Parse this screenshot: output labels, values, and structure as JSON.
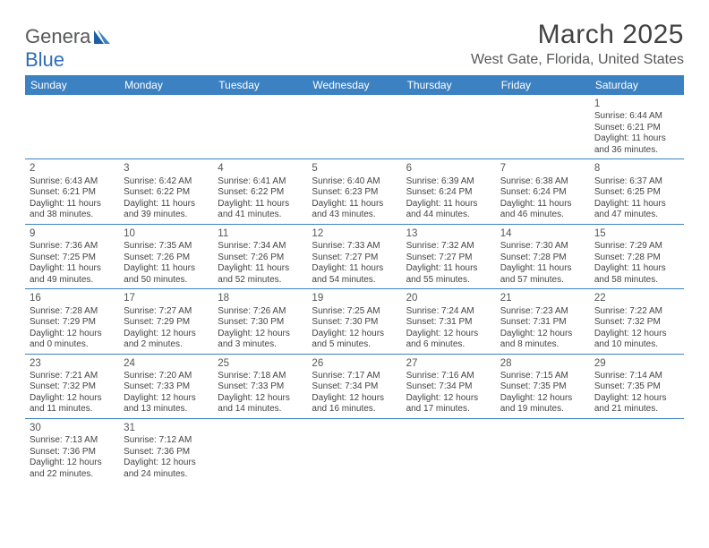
{
  "colors": {
    "header_bg": "#3c81c2",
    "header_text": "#ffffff",
    "body_text": "#444444",
    "border": "#3c81c2",
    "title_color": "#414244",
    "subtitle_color": "#57585a",
    "logo_gray": "#57585a",
    "logo_blue": "#2f6db3",
    "background": "#ffffff"
  },
  "fonts": {
    "title_size": 30,
    "location_size": 16,
    "weekday_size": 12,
    "cell_size": 10,
    "daynum_size": 11.5
  },
  "logo": {
    "text_gray": "Genera",
    "text_blue": "Blue"
  },
  "title": "March 2025",
  "location": "West Gate, Florida, United States",
  "weekdays": [
    "Sunday",
    "Monday",
    "Tuesday",
    "Wednesday",
    "Thursday",
    "Friday",
    "Saturday"
  ],
  "leading_blanks": 6,
  "days": [
    {
      "n": "1",
      "sr": "Sunrise: 6:44 AM",
      "ss": "Sunset: 6:21 PM",
      "d1": "Daylight: 11 hours",
      "d2": "and 36 minutes."
    },
    {
      "n": "2",
      "sr": "Sunrise: 6:43 AM",
      "ss": "Sunset: 6:21 PM",
      "d1": "Daylight: 11 hours",
      "d2": "and 38 minutes."
    },
    {
      "n": "3",
      "sr": "Sunrise: 6:42 AM",
      "ss": "Sunset: 6:22 PM",
      "d1": "Daylight: 11 hours",
      "d2": "and 39 minutes."
    },
    {
      "n": "4",
      "sr": "Sunrise: 6:41 AM",
      "ss": "Sunset: 6:22 PM",
      "d1": "Daylight: 11 hours",
      "d2": "and 41 minutes."
    },
    {
      "n": "5",
      "sr": "Sunrise: 6:40 AM",
      "ss": "Sunset: 6:23 PM",
      "d1": "Daylight: 11 hours",
      "d2": "and 43 minutes."
    },
    {
      "n": "6",
      "sr": "Sunrise: 6:39 AM",
      "ss": "Sunset: 6:24 PM",
      "d1": "Daylight: 11 hours",
      "d2": "and 44 minutes."
    },
    {
      "n": "7",
      "sr": "Sunrise: 6:38 AM",
      "ss": "Sunset: 6:24 PM",
      "d1": "Daylight: 11 hours",
      "d2": "and 46 minutes."
    },
    {
      "n": "8",
      "sr": "Sunrise: 6:37 AM",
      "ss": "Sunset: 6:25 PM",
      "d1": "Daylight: 11 hours",
      "d2": "and 47 minutes."
    },
    {
      "n": "9",
      "sr": "Sunrise: 7:36 AM",
      "ss": "Sunset: 7:25 PM",
      "d1": "Daylight: 11 hours",
      "d2": "and 49 minutes."
    },
    {
      "n": "10",
      "sr": "Sunrise: 7:35 AM",
      "ss": "Sunset: 7:26 PM",
      "d1": "Daylight: 11 hours",
      "d2": "and 50 minutes."
    },
    {
      "n": "11",
      "sr": "Sunrise: 7:34 AM",
      "ss": "Sunset: 7:26 PM",
      "d1": "Daylight: 11 hours",
      "d2": "and 52 minutes."
    },
    {
      "n": "12",
      "sr": "Sunrise: 7:33 AM",
      "ss": "Sunset: 7:27 PM",
      "d1": "Daylight: 11 hours",
      "d2": "and 54 minutes."
    },
    {
      "n": "13",
      "sr": "Sunrise: 7:32 AM",
      "ss": "Sunset: 7:27 PM",
      "d1": "Daylight: 11 hours",
      "d2": "and 55 minutes."
    },
    {
      "n": "14",
      "sr": "Sunrise: 7:30 AM",
      "ss": "Sunset: 7:28 PM",
      "d1": "Daylight: 11 hours",
      "d2": "and 57 minutes."
    },
    {
      "n": "15",
      "sr": "Sunrise: 7:29 AM",
      "ss": "Sunset: 7:28 PM",
      "d1": "Daylight: 11 hours",
      "d2": "and 58 minutes."
    },
    {
      "n": "16",
      "sr": "Sunrise: 7:28 AM",
      "ss": "Sunset: 7:29 PM",
      "d1": "Daylight: 12 hours",
      "d2": "and 0 minutes."
    },
    {
      "n": "17",
      "sr": "Sunrise: 7:27 AM",
      "ss": "Sunset: 7:29 PM",
      "d1": "Daylight: 12 hours",
      "d2": "and 2 minutes."
    },
    {
      "n": "18",
      "sr": "Sunrise: 7:26 AM",
      "ss": "Sunset: 7:30 PM",
      "d1": "Daylight: 12 hours",
      "d2": "and 3 minutes."
    },
    {
      "n": "19",
      "sr": "Sunrise: 7:25 AM",
      "ss": "Sunset: 7:30 PM",
      "d1": "Daylight: 12 hours",
      "d2": "and 5 minutes."
    },
    {
      "n": "20",
      "sr": "Sunrise: 7:24 AM",
      "ss": "Sunset: 7:31 PM",
      "d1": "Daylight: 12 hours",
      "d2": "and 6 minutes."
    },
    {
      "n": "21",
      "sr": "Sunrise: 7:23 AM",
      "ss": "Sunset: 7:31 PM",
      "d1": "Daylight: 12 hours",
      "d2": "and 8 minutes."
    },
    {
      "n": "22",
      "sr": "Sunrise: 7:22 AM",
      "ss": "Sunset: 7:32 PM",
      "d1": "Daylight: 12 hours",
      "d2": "and 10 minutes."
    },
    {
      "n": "23",
      "sr": "Sunrise: 7:21 AM",
      "ss": "Sunset: 7:32 PM",
      "d1": "Daylight: 12 hours",
      "d2": "and 11 minutes."
    },
    {
      "n": "24",
      "sr": "Sunrise: 7:20 AM",
      "ss": "Sunset: 7:33 PM",
      "d1": "Daylight: 12 hours",
      "d2": "and 13 minutes."
    },
    {
      "n": "25",
      "sr": "Sunrise: 7:18 AM",
      "ss": "Sunset: 7:33 PM",
      "d1": "Daylight: 12 hours",
      "d2": "and 14 minutes."
    },
    {
      "n": "26",
      "sr": "Sunrise: 7:17 AM",
      "ss": "Sunset: 7:34 PM",
      "d1": "Daylight: 12 hours",
      "d2": "and 16 minutes."
    },
    {
      "n": "27",
      "sr": "Sunrise: 7:16 AM",
      "ss": "Sunset: 7:34 PM",
      "d1": "Daylight: 12 hours",
      "d2": "and 17 minutes."
    },
    {
      "n": "28",
      "sr": "Sunrise: 7:15 AM",
      "ss": "Sunset: 7:35 PM",
      "d1": "Daylight: 12 hours",
      "d2": "and 19 minutes."
    },
    {
      "n": "29",
      "sr": "Sunrise: 7:14 AM",
      "ss": "Sunset: 7:35 PM",
      "d1": "Daylight: 12 hours",
      "d2": "and 21 minutes."
    },
    {
      "n": "30",
      "sr": "Sunrise: 7:13 AM",
      "ss": "Sunset: 7:36 PM",
      "d1": "Daylight: 12 hours",
      "d2": "and 22 minutes."
    },
    {
      "n": "31",
      "sr": "Sunrise: 7:12 AM",
      "ss": "Sunset: 7:36 PM",
      "d1": "Daylight: 12 hours",
      "d2": "and 24 minutes."
    }
  ]
}
